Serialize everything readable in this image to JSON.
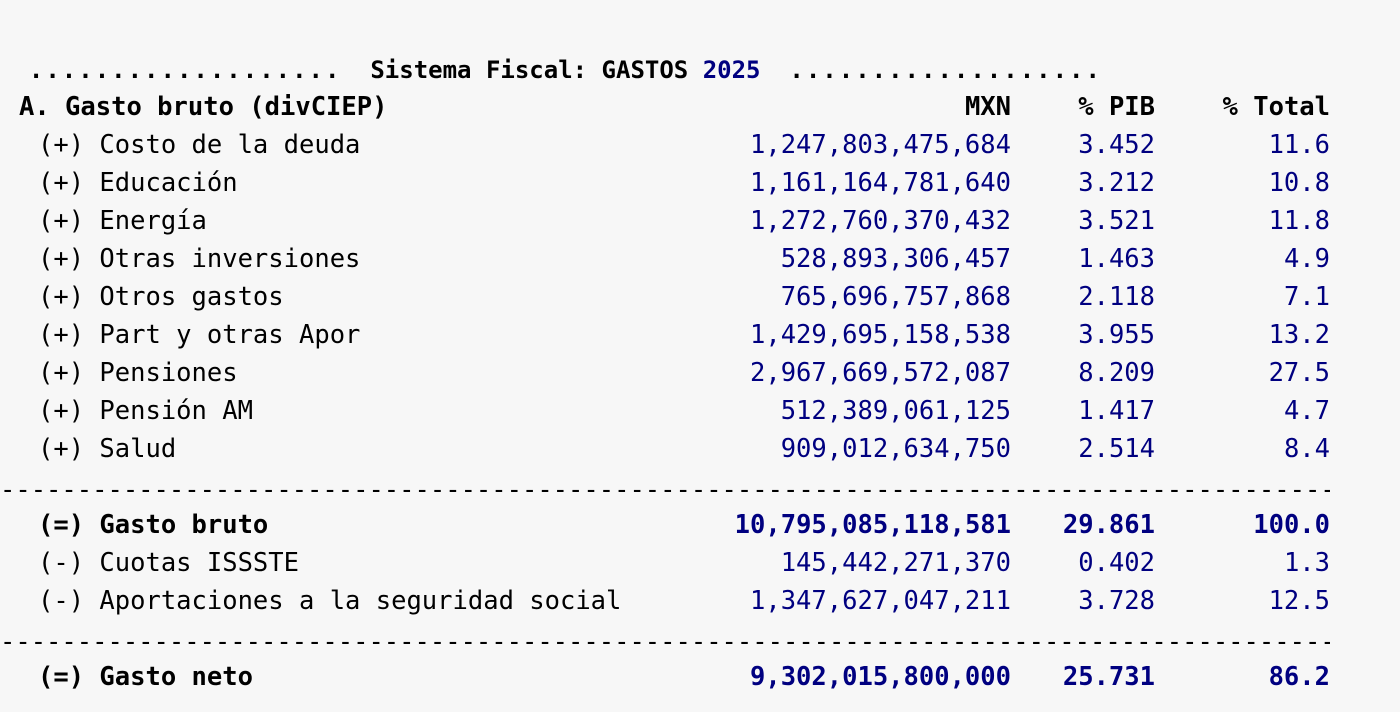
{
  "title": {
    "dots_left": "...................",
    "text": "Sistema Fiscal: GASTOS",
    "year": "2025",
    "dots_right": "..................."
  },
  "header": {
    "label": "A. Gasto bruto (divCIEP)",
    "mxn": "MXN",
    "pib": "% PIB",
    "total": "% Total"
  },
  "rows": [
    {
      "label": "(+) Costo de la deuda",
      "mxn": "1,247,803,475,684",
      "pib": "3.452",
      "total": "11.6"
    },
    {
      "label": "(+) Educación",
      "mxn": "1,161,164,781,640",
      "pib": "3.212",
      "total": "10.8"
    },
    {
      "label": "(+) Energía",
      "mxn": "1,272,760,370,432",
      "pib": "3.521",
      "total": "11.8"
    },
    {
      "label": "(+) Otras inversiones",
      "mxn": "528,893,306,457",
      "pib": "1.463",
      "total": "4.9"
    },
    {
      "label": "(+) Otros gastos",
      "mxn": "765,696,757,868",
      "pib": "2.118",
      "total": "7.1"
    },
    {
      "label": "(+) Part y otras Apor",
      "mxn": "1,429,695,158,538",
      "pib": "3.955",
      "total": "13.2"
    },
    {
      "label": "(+) Pensiones",
      "mxn": "2,967,669,572,087",
      "pib": "8.209",
      "total": "27.5"
    },
    {
      "label": "(+) Pensión AM",
      "mxn": "512,389,061,125",
      "pib": "1.417",
      "total": "4.7"
    },
    {
      "label": "(+) Salud",
      "mxn": "909,012,634,750",
      "pib": "2.514",
      "total": "8.4"
    }
  ],
  "gross": {
    "label": "(=) Gasto bruto",
    "mxn": "10,795,085,118,581",
    "pib": "29.861",
    "total": "100.0"
  },
  "deductions": [
    {
      "label": "(-) Cuotas ISSSTE",
      "mxn": "145,442,271,370",
      "pib": "0.402",
      "total": "1.3"
    },
    {
      "label": "(-) Aportaciones a la seguridad social",
      "mxn": "1,347,627,047,211",
      "pib": "3.728",
      "total": "12.5"
    }
  ],
  "net": {
    "label": "(=) Gasto neto",
    "mxn": "9,302,015,800,000",
    "pib": "25.731",
    "total": "86.2"
  },
  "separator": "-----------------------------------------------------------------------------------------------------"
}
